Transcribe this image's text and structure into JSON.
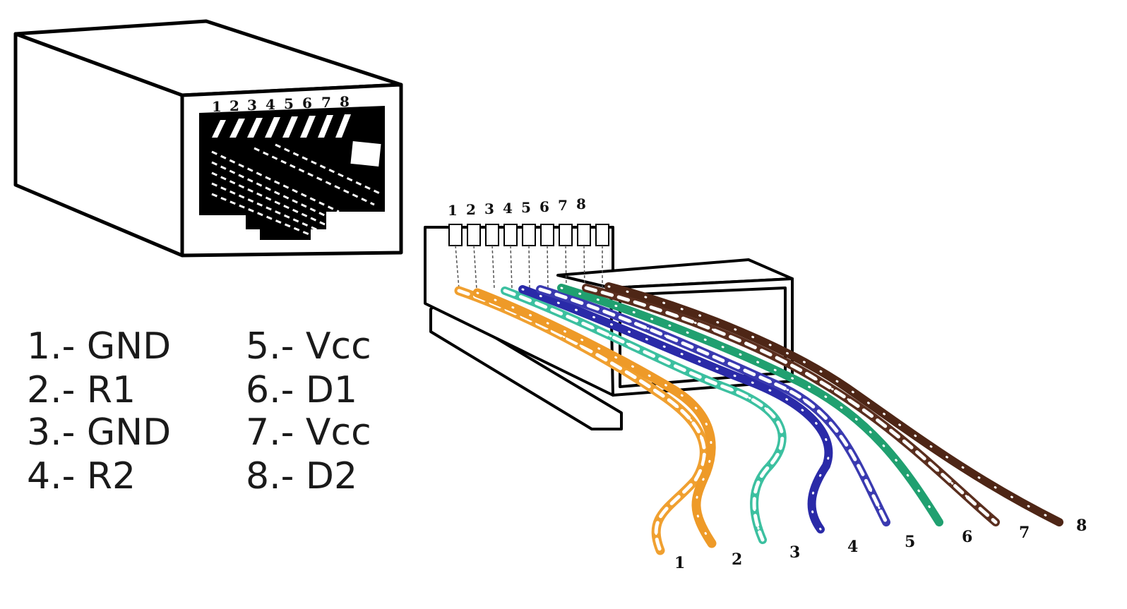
{
  "jack": {
    "pin_numbers": [
      "1",
      "2",
      "3",
      "4",
      "5",
      "6",
      "7",
      "8"
    ]
  },
  "plug": {
    "pin_numbers": [
      "1",
      "2",
      "3",
      "4",
      "5",
      "6",
      "7",
      "8"
    ]
  },
  "pinout": [
    {
      "label": "1.- GND"
    },
    {
      "label": "2.- R1"
    },
    {
      "label": "3.- GND"
    },
    {
      "label": "4.- R2"
    },
    {
      "label": "5.- Vcc"
    },
    {
      "label": "6.- D1"
    },
    {
      "label": "7.- Vcc"
    },
    {
      "label": "8.- D2"
    }
  ],
  "wires": [
    {
      "number": "1",
      "color": "#f0a030",
      "striped": true
    },
    {
      "number": "2",
      "color": "#ee9a28",
      "striped": false
    },
    {
      "number": "3",
      "color": "#3cc0a0",
      "striped": true
    },
    {
      "number": "4",
      "color": "#2a2aa8",
      "striped": false
    },
    {
      "number": "5",
      "color": "#3a3ab0",
      "striped": true
    },
    {
      "number": "6",
      "color": "#20a070",
      "striped": false
    },
    {
      "number": "7",
      "color": "#5a2e1e",
      "striped": true
    },
    {
      "number": "8",
      "color": "#4e2616",
      "striped": false
    }
  ]
}
